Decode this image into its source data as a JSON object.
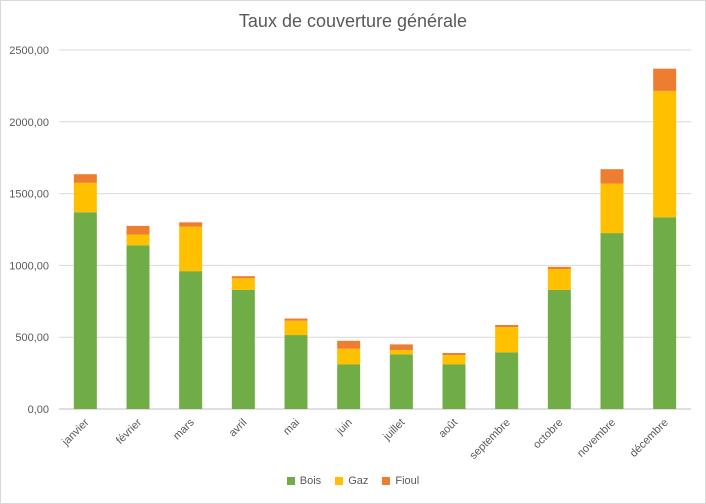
{
  "chart_data": {
    "type": "bar",
    "stacked": true,
    "title": "Taux de couverture générale",
    "xlabel": "",
    "ylabel": "",
    "ylim": [
      0,
      2500
    ],
    "yticks": [
      "0,00",
      "500,00",
      "1000,00",
      "1500,00",
      "2000,00",
      "2500,00"
    ],
    "grid": true,
    "legend_position": "bottom",
    "categories": [
      "janvier",
      "février",
      "mars",
      "avril",
      "mai",
      "juin",
      "juillet",
      "août",
      "septembre",
      "octobre",
      "novembre",
      "décembre"
    ],
    "series": [
      {
        "name": "Bois",
        "color": "#70AD47",
        "values": [
          1370,
          1140,
          960,
          830,
          515,
          310,
          380,
          310,
          395,
          830,
          1225,
          1335
        ]
      },
      {
        "name": "Gaz",
        "color": "#FFC000",
        "values": [
          205,
          75,
          310,
          80,
          100,
          110,
          30,
          65,
          175,
          145,
          345,
          880
        ]
      },
      {
        "name": "Fioul",
        "color": "#ED7D31",
        "values": [
          60,
          60,
          30,
          15,
          15,
          55,
          40,
          15,
          15,
          15,
          100,
          155
        ]
      }
    ]
  }
}
